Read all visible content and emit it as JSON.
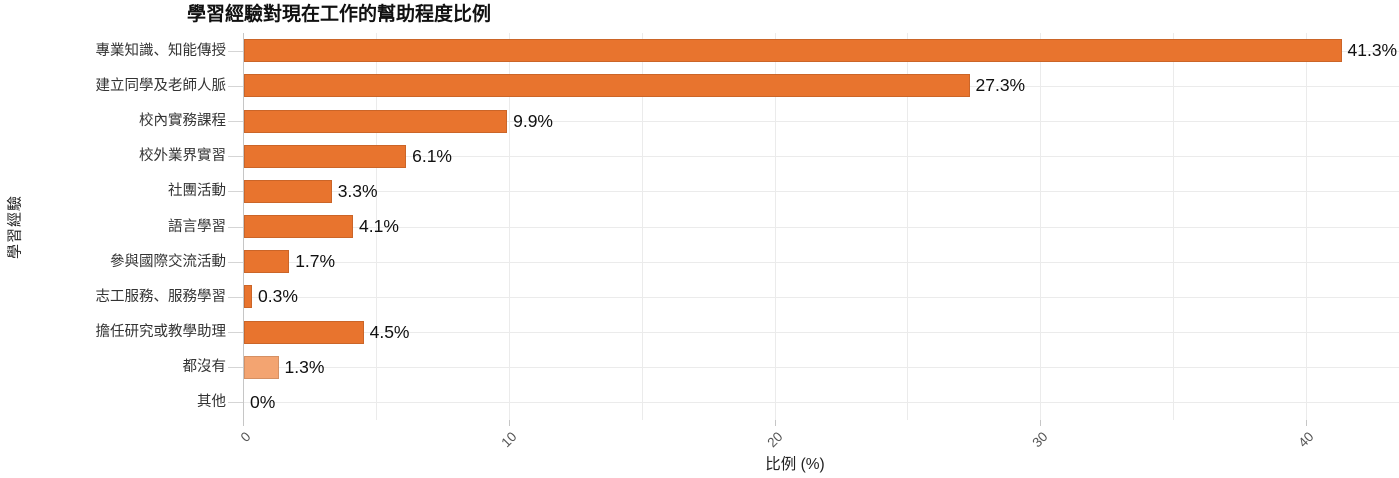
{
  "chart_data": {
    "type": "bar",
    "orientation": "horizontal",
    "title": "學習經驗對現在工作的幫助程度比例",
    "xlabel": "比例 (%)",
    "ylabel": "學習經驗",
    "categories": [
      "專業知識、知能傳授",
      "建立同學及老師人脈",
      "校內實務課程",
      "校外業界實習",
      "社團活動",
      "語言學習",
      "參與國際交流活動",
      "志工服務、服務學習",
      "擔任研究或教學助理",
      "都沒有",
      "其他"
    ],
    "values": [
      41.3,
      27.3,
      9.9,
      6.1,
      3.3,
      4.1,
      1.7,
      0.3,
      4.5,
      1.3,
      0
    ],
    "value_labels": [
      "41.3%",
      "27.3%",
      "9.9%",
      "6.1%",
      "3.3%",
      "4.1%",
      "1.7%",
      "0.3%",
      "4.5%",
      "1.3%",
      "0%"
    ],
    "bar_colors": [
      "#E8742E",
      "#E8742E",
      "#E8742E",
      "#E8742E",
      "#E8742E",
      "#E8742E",
      "#E8742E",
      "#E8742E",
      "#E8742E",
      "#F3A471",
      "#E8742E"
    ],
    "x_ticks": [
      0,
      10,
      20,
      30,
      40
    ],
    "x_tick_labels": [
      "0",
      "10",
      "20",
      "30",
      "40"
    ],
    "x_grid_step": 5,
    "xlim": [
      0,
      43.5
    ],
    "grid": true,
    "legend": "none",
    "colors": {
      "bar_default": "#E8742E",
      "bar_muted": "#F3A471",
      "gridline": "#EBEBEB",
      "axis_line": "#C6C6C6",
      "title_text": "#111111",
      "category_text": "#333333",
      "tick_text": "#555555"
    }
  }
}
